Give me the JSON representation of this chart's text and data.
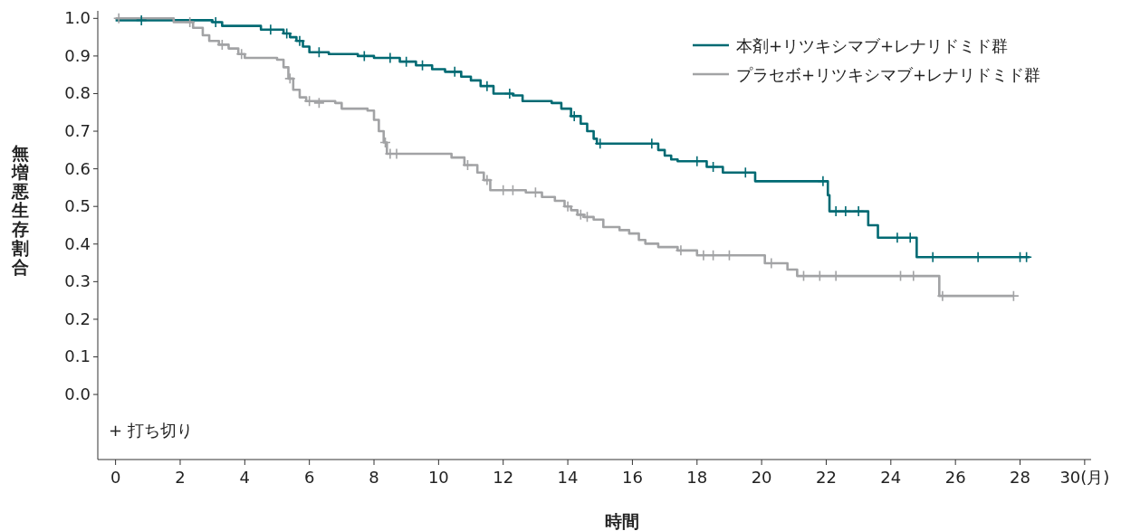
{
  "chart_data": {
    "type": "step",
    "xlabel": "時間",
    "ylabel": "無増悪生存割合",
    "xlim": [
      -0.55,
      30.2
    ],
    "ylim": [
      -0.173,
      1.02
    ],
    "xticks": [
      0,
      2,
      4,
      6,
      8,
      10,
      12,
      14,
      16,
      18,
      20,
      22,
      24,
      26,
      28,
      {
        "value": 30,
        "label": "30(月)"
      }
    ],
    "yticks": [
      {
        "value": 0,
        "label": "0.0"
      },
      {
        "value": 0.1,
        "label": "0.1"
      },
      {
        "value": 0.2,
        "label": "0.2"
      },
      {
        "value": 0.3,
        "label": "0.3"
      },
      {
        "value": 0.4,
        "label": "0.4"
      },
      {
        "value": 0.5,
        "label": "0.5"
      },
      {
        "value": 0.6,
        "label": "0.6"
      },
      {
        "value": 0.7,
        "label": "0.7"
      },
      {
        "value": 0.8,
        "label": "0.8"
      },
      {
        "value": 0.9,
        "label": "0.9"
      },
      {
        "value": 1,
        "label": "1.0"
      }
    ],
    "grid": false,
    "legend": "top right",
    "annotations": [
      "+ 打ち切り"
    ],
    "series": [
      {
        "name": "本剤+リツキシマブ+レナリドミド群",
        "color": "#006a73",
        "x": [
          0,
          3.0,
          3.3,
          4.5,
          5.2,
          5.4,
          5.6,
          5.8,
          6.0,
          6.6,
          7.5,
          8.0,
          8.8,
          9.3,
          9.8,
          10.2,
          10.7,
          11.0,
          11.3,
          11.7,
          12.3,
          12.6,
          13.5,
          13.8,
          14.1,
          14.4,
          14.6,
          14.8,
          14.9,
          16.8,
          17.0,
          17.2,
          17.4,
          18.3,
          18.8,
          19.8,
          22.05,
          22.1,
          23.3,
          23.6,
          24.8,
          28.3
        ],
        "values": [
          0.995,
          0.99,
          0.98,
          0.97,
          0.96,
          0.95,
          0.94,
          0.925,
          0.91,
          0.905,
          0.9,
          0.895,
          0.885,
          0.875,
          0.865,
          0.858,
          0.845,
          0.835,
          0.82,
          0.8,
          0.795,
          0.78,
          0.775,
          0.76,
          0.74,
          0.72,
          0.7,
          0.68,
          0.667,
          0.65,
          0.635,
          0.625,
          0.62,
          0.605,
          0.59,
          0.567,
          0.53,
          0.487,
          0.45,
          0.417,
          0.365,
          0.365
        ]
      },
      {
        "name": "プラセボ+リツキシマブ+レナリドミド群",
        "color": "#a2a3a5",
        "x": [
          0,
          1.8,
          2.4,
          2.7,
          2.9,
          3.2,
          3.5,
          3.8,
          4.0,
          5.0,
          5.2,
          5.35,
          5.5,
          5.7,
          5.9,
          6.8,
          7.0,
          7.8,
          8.0,
          8.15,
          8.3,
          8.4,
          10.4,
          10.8,
          11.2,
          11.4,
          11.6,
          12.7,
          13.2,
          13.6,
          13.9,
          14.1,
          14.3,
          14.5,
          14.8,
          15.1,
          15.6,
          15.9,
          16.2,
          16.4,
          16.8,
          17.4,
          18.0,
          20.1,
          20.8,
          21.1,
          25.5,
          27.8
        ],
        "values": [
          1.0,
          0.99,
          0.975,
          0.955,
          0.94,
          0.93,
          0.92,
          0.905,
          0.895,
          0.89,
          0.87,
          0.84,
          0.81,
          0.79,
          0.78,
          0.775,
          0.76,
          0.755,
          0.73,
          0.7,
          0.67,
          0.64,
          0.63,
          0.61,
          0.59,
          0.57,
          0.543,
          0.537,
          0.525,
          0.515,
          0.5,
          0.49,
          0.478,
          0.472,
          0.465,
          0.445,
          0.437,
          0.428,
          0.411,
          0.401,
          0.392,
          0.383,
          0.37,
          0.349,
          0.332,
          0.315,
          0.262,
          0.262
        ]
      },
      {
        "type": "scatter",
        "marker": "cross",
        "color": "#006a73",
        "x": [
          0.8,
          3.1,
          4.8,
          5.3,
          5.7,
          6.3,
          7.7,
          8.5,
          9.0,
          9.5,
          10.5,
          11.5,
          12.2,
          14.2,
          15.0,
          16.6,
          18.0,
          18.5,
          19.5,
          21.9,
          22.3,
          22.6,
          23.0,
          24.2,
          24.6,
          25.3,
          26.7,
          28.0,
          28.2
        ],
        "values": [
          0.995,
          0.99,
          0.97,
          0.96,
          0.94,
          0.91,
          0.9,
          0.895,
          0.885,
          0.875,
          0.858,
          0.82,
          0.8,
          0.74,
          0.667,
          0.667,
          0.62,
          0.605,
          0.59,
          0.567,
          0.487,
          0.487,
          0.487,
          0.417,
          0.417,
          0.365,
          0.365,
          0.365,
          0.365
        ]
      },
      {
        "type": "scatter",
        "marker": "cross",
        "color": "#a2a3a5",
        "x": [
          0.1,
          2.3,
          3.3,
          3.9,
          5.4,
          6.0,
          6.3,
          8.35,
          8.5,
          8.7,
          10.9,
          11.5,
          12.0,
          12.3,
          13.0,
          14.0,
          14.4,
          14.6,
          17.5,
          18.2,
          18.5,
          19.0,
          20.3,
          21.3,
          21.8,
          22.3,
          24.3,
          24.7,
          25.6,
          27.8
        ],
        "values": [
          1.0,
          0.99,
          0.93,
          0.905,
          0.84,
          0.78,
          0.775,
          0.67,
          0.64,
          0.64,
          0.61,
          0.57,
          0.543,
          0.543,
          0.537,
          0.5,
          0.478,
          0.472,
          0.383,
          0.37,
          0.37,
          0.37,
          0.349,
          0.315,
          0.315,
          0.315,
          0.315,
          0.315,
          0.262,
          0.262
        ]
      }
    ]
  }
}
